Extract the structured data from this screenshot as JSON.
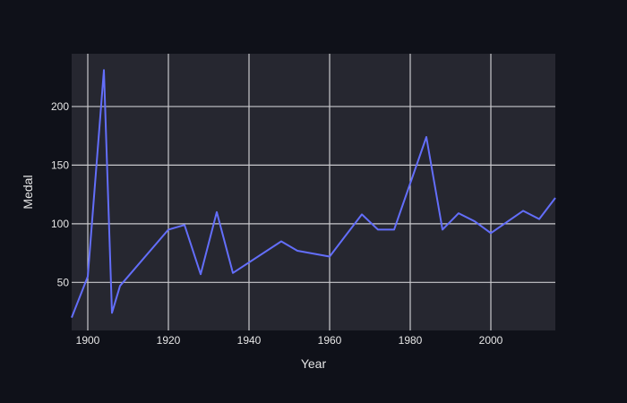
{
  "chart_data": {
    "type": "line",
    "title": "",
    "xlabel": "Year",
    "ylabel": "Medal",
    "xlim": [
      1896,
      2016
    ],
    "ylim": [
      9,
      245
    ],
    "grid": true,
    "legend": "none",
    "x_ticks": [
      1900,
      1920,
      1940,
      1960,
      1980,
      2000
    ],
    "y_ticks": [
      50,
      100,
      150,
      200
    ],
    "colors": {
      "page_background": "#0f1119",
      "plot_background": "#262730",
      "grid": "#c8c8cc",
      "line": "#636efa",
      "text": "#e6e6e6"
    },
    "series": [
      {
        "x": [
          1896,
          1900,
          1904,
          1906,
          1908,
          1920,
          1924,
          1928,
          1932,
          1936,
          1948,
          1952,
          1960,
          1964,
          1968,
          1972,
          1976,
          1984,
          1988,
          1992,
          1996,
          2000,
          2008,
          2012,
          2016
        ],
        "y": [
          20,
          55,
          231,
          24,
          47,
          95,
          99,
          57,
          110,
          58,
          85,
          77,
          72,
          90,
          108,
          95,
          95,
          174,
          95,
          109,
          102,
          92,
          111,
          104,
          122
        ]
      }
    ]
  }
}
